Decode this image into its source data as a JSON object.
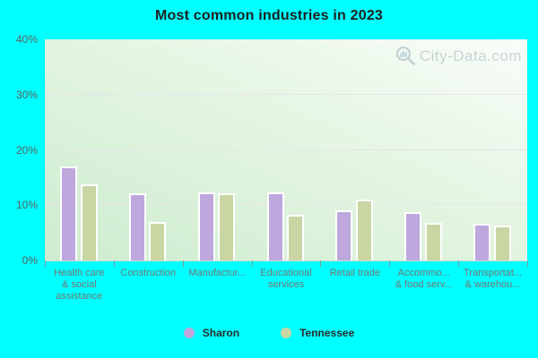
{
  "title": "Most common industries in 2023",
  "watermark": {
    "text": "City-Data.com"
  },
  "colors": {
    "page_background": "#00ffff",
    "plot_gradient_bottom_left": "#cdeccf",
    "plot_gradient_top_right": "#f9fdf9",
    "gridline": "#e9e0ec",
    "title_text": "#1f1f1f",
    "axis_tick_text": "#5f5f5f",
    "category_text": "#757575",
    "legend_text": "#2b2b2b",
    "watermark_text": "#b9c7cd",
    "sharon_bar": "#bda7dd",
    "tennessee_bar": "#c9d6a3",
    "bar_border": "#ffffff"
  },
  "y_axis": {
    "tick_labels": [
      "40%",
      "30%",
      "20%",
      "10%",
      "0%"
    ],
    "tick_values": [
      40,
      30,
      20,
      10,
      0
    ]
  },
  "legend": {
    "items": [
      {
        "label": "Sharon",
        "color": "#bda7dd"
      },
      {
        "label": "Tennessee",
        "color": "#c9d6a3"
      }
    ]
  },
  "chart_data": {
    "type": "bar",
    "title": "Most common industries in 2023",
    "categories": [
      "Health care & social assistance",
      "Construction",
      "Manufacturing",
      "Educational services",
      "Retail trade",
      "Accommodation & food services",
      "Transportation & warehousing"
    ],
    "category_display_lines": [
      [
        "Health care",
        "& social",
        "assistance"
      ],
      [
        "Construction"
      ],
      [
        "Manufactur..."
      ],
      [
        "Educational",
        "services"
      ],
      [
        "Retail trade"
      ],
      [
        "Accommo...",
        "& food serv..."
      ],
      [
        "Transportat...",
        "& warehou..."
      ]
    ],
    "series": [
      {
        "name": "Sharon",
        "color": "#bda7dd",
        "values": [
          17.0,
          12.1,
          12.3,
          12.3,
          9.1,
          8.7,
          6.6
        ]
      },
      {
        "name": "Tennessee",
        "color": "#c9d6a3",
        "values": [
          13.7,
          6.9,
          12.2,
          8.3,
          11.0,
          6.8,
          6.3
        ]
      }
    ],
    "xlabel": "",
    "ylabel": "",
    "ylim": [
      0,
      40
    ],
    "y_ticks": [
      0,
      10,
      20,
      30,
      40
    ],
    "grid": true,
    "legend_position": "bottom"
  }
}
